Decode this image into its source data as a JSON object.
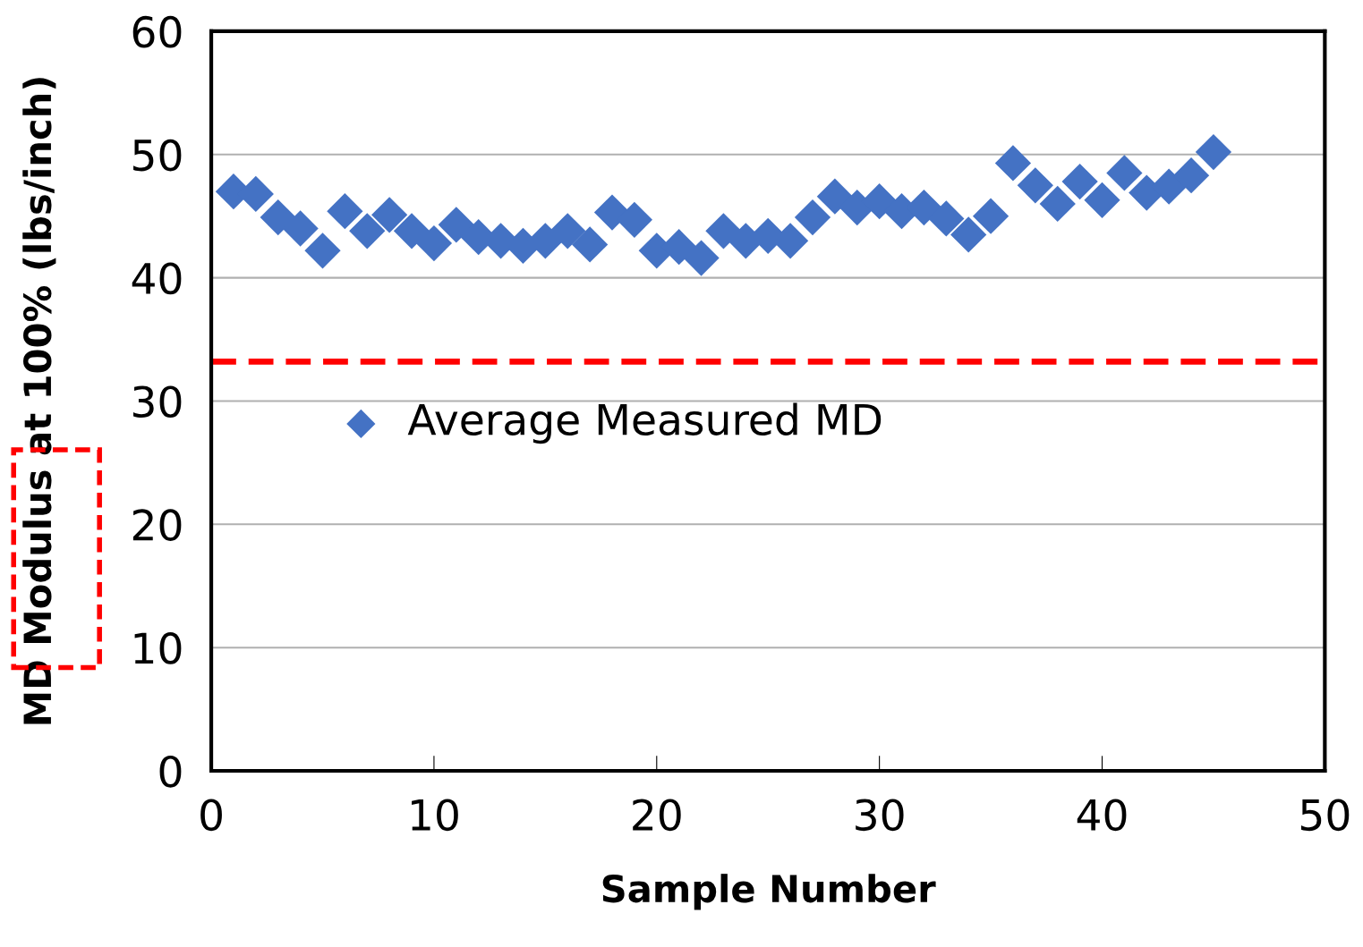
{
  "chart_data": {
    "type": "scatter",
    "xlabel": "Sample Number",
    "ylabel": "MD Modulus at 100% (lbs/inch)",
    "x": [
      1,
      2,
      3,
      4,
      5,
      6,
      7,
      8,
      9,
      10,
      11,
      12,
      13,
      14,
      15,
      16,
      17,
      18,
      19,
      20,
      21,
      22,
      23,
      24,
      25,
      26,
      27,
      28,
      29,
      30,
      31,
      32,
      33,
      34,
      35,
      36,
      37,
      38,
      39,
      40,
      41,
      42,
      43,
      44,
      45
    ],
    "series": [
      {
        "name": "Average Measured MD",
        "color": "#4472c4",
        "values": [
          47.0,
          46.8,
          44.9,
          44.0,
          42.2,
          45.4,
          43.8,
          45.1,
          43.8,
          42.8,
          44.3,
          43.3,
          43.0,
          42.6,
          43.0,
          43.8,
          42.7,
          45.3,
          44.7,
          42.2,
          42.5,
          41.6,
          43.8,
          43.0,
          43.4,
          43.0,
          44.9,
          46.6,
          45.7,
          46.2,
          45.4,
          45.7,
          44.8,
          43.5,
          45.0,
          49.3,
          47.5,
          46.0,
          47.8,
          46.3,
          48.5,
          46.9,
          47.4,
          48.3,
          50.2
        ]
      }
    ],
    "xlim": [
      0,
      50
    ],
    "xticks": [
      0,
      10,
      20,
      30,
      40,
      50
    ],
    "ylim": [
      0,
      60
    ],
    "yticks": [
      0,
      10,
      20,
      30,
      40,
      50,
      60
    ],
    "ref_lines": [
      {
        "axis": "y",
        "value": 33.2,
        "color": "#ff0000",
        "line_style": "dashed"
      }
    ],
    "grid": "y",
    "legend": "center",
    "marker": "diamond"
  }
}
